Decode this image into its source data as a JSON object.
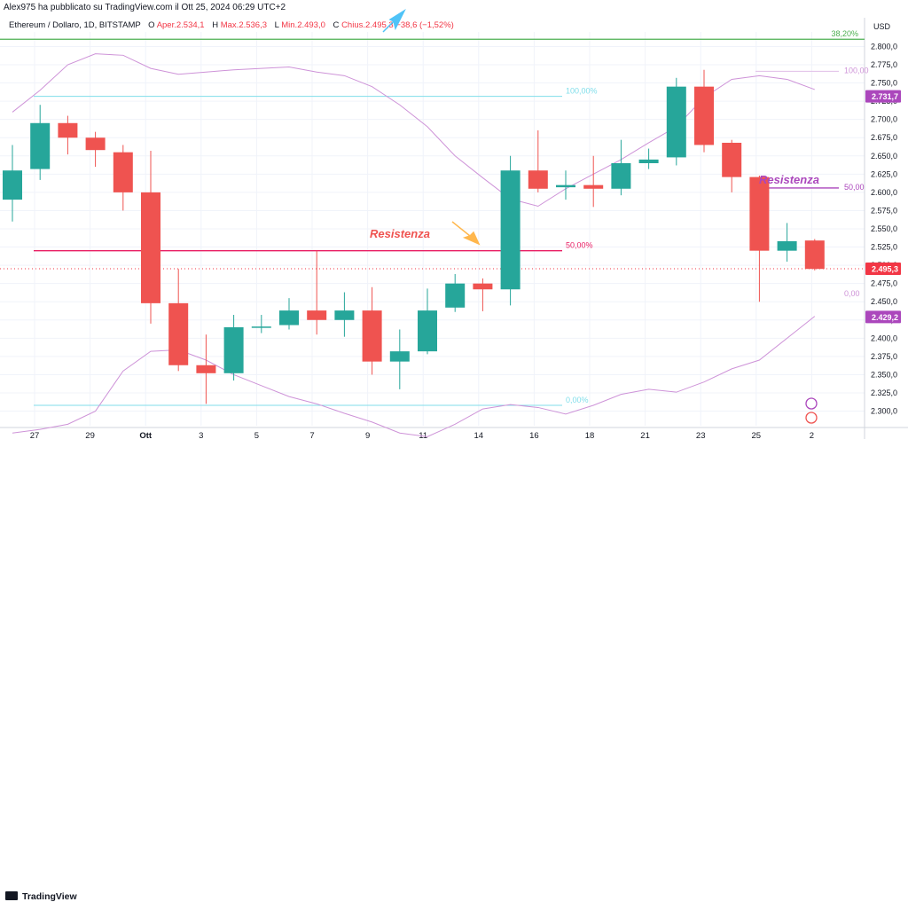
{
  "attribution": "Alex975 ha pubblicato su TradingView.com il Ott 25, 2024 06:29 UTC+2",
  "legend": {
    "symbol": "Ethereum / Dollaro, 1D, BITSTAMP",
    "o_label": "O",
    "o_value": "Aper.2.534,1",
    "h_label": "H",
    "h_value": "Max.2.536,3",
    "l_label": "L",
    "l_value": "Min.2.493,0",
    "c_label": "C",
    "c_value": "Chius.2.495,3",
    "change": "−38,6 (−1,52%)"
  },
  "footer": {
    "brand": "TradingView"
  },
  "colors": {
    "up": "#26a69a",
    "down": "#ef5350",
    "bb": "#ce93d8",
    "fib": "#80deea",
    "resist": "#e91e63",
    "fib382": "#4caf50",
    "annotation": "#ab47bc"
  },
  "chart_data": {
    "type": "candlestick",
    "currency": "USD",
    "x_ticks": [
      "27",
      "29",
      "Ott",
      "3",
      "5",
      "7",
      "9",
      "11",
      "14",
      "16",
      "18",
      "21",
      "23",
      "25",
      "2"
    ],
    "y_ticks": [
      "2.800,0",
      "2.775,0",
      "2.750,0",
      "2.725,0",
      "2.700,0",
      "2.675,0",
      "2.650,0",
      "2.625,0",
      "2.600,0",
      "2.575,0",
      "2.550,0",
      "2.525,0",
      "2.500,0",
      "2.475,0",
      "2.450,0",
      "2.425,0",
      "2.400,0",
      "2.375,0",
      "2.350,0",
      "2.325,0",
      "2.300,0"
    ],
    "ylim": [
      2280,
      2820
    ],
    "candles": [
      {
        "o": 2590,
        "h": 2665,
        "l": 2560,
        "c": 2630
      },
      {
        "o": 2632,
        "h": 2720,
        "l": 2617,
        "c": 2695
      },
      {
        "o": 2695,
        "h": 2705,
        "l": 2652,
        "c": 2675
      },
      {
        "o": 2675,
        "h": 2683,
        "l": 2635,
        "c": 2658
      },
      {
        "o": 2655,
        "h": 2665,
        "l": 2575,
        "c": 2600
      },
      {
        "o": 2600,
        "h": 2657,
        "l": 2420,
        "c": 2448
      },
      {
        "o": 2448,
        "h": 2495,
        "l": 2355,
        "c": 2363
      },
      {
        "o": 2363,
        "h": 2405,
        "l": 2310,
        "c": 2352
      },
      {
        "o": 2352,
        "h": 2432,
        "l": 2342,
        "c": 2415
      },
      {
        "o": 2415,
        "h": 2432,
        "l": 2407,
        "c": 2416
      },
      {
        "o": 2418,
        "h": 2455,
        "l": 2412,
        "c": 2438
      },
      {
        "o": 2438,
        "h": 2520,
        "l": 2405,
        "c": 2425
      },
      {
        "o": 2425,
        "h": 2463,
        "l": 2402,
        "c": 2438
      },
      {
        "o": 2438,
        "h": 2470,
        "l": 2350,
        "c": 2368
      },
      {
        "o": 2368,
        "h": 2412,
        "l": 2330,
        "c": 2382
      },
      {
        "o": 2382,
        "h": 2468,
        "l": 2378,
        "c": 2438
      },
      {
        "o": 2442,
        "h": 2488,
        "l": 2436,
        "c": 2475
      },
      {
        "o": 2475,
        "h": 2482,
        "l": 2437,
        "c": 2467
      },
      {
        "o": 2467,
        "h": 2650,
        "l": 2445,
        "c": 2630
      },
      {
        "o": 2630,
        "h": 2685,
        "l": 2600,
        "c": 2605
      },
      {
        "o": 2607,
        "h": 2630,
        "l": 2590,
        "c": 2610
      },
      {
        "o": 2610,
        "h": 2650,
        "l": 2580,
        "c": 2605
      },
      {
        "o": 2605,
        "h": 2672,
        "l": 2596,
        "c": 2640
      },
      {
        "o": 2640,
        "h": 2660,
        "l": 2632,
        "c": 2645
      },
      {
        "o": 2648,
        "h": 2757,
        "l": 2637,
        "c": 2745
      },
      {
        "o": 2745,
        "h": 2768,
        "l": 2655,
        "c": 2665
      },
      {
        "o": 2668,
        "h": 2672,
        "l": 2600,
        "c": 2621
      },
      {
        "o": 2621,
        "h": 2623,
        "l": 2450,
        "c": 2520
      },
      {
        "o": 2520,
        "h": 2558,
        "l": 2505,
        "c": 2533
      },
      {
        "o": 2534,
        "h": 2536,
        "l": 2493,
        "c": 2495
      }
    ],
    "bb_upper": [
      2710,
      2740,
      2775,
      2790,
      2788,
      2770,
      2762,
      2765,
      2768,
      2770,
      2772,
      2765,
      2760,
      2745,
      2720,
      2690,
      2650,
      2620,
      2591,
      2581,
      2605,
      2625,
      2645,
      2668,
      2690,
      2730,
      2755,
      2760,
      2755,
      2741
    ],
    "bb_lower": [
      2270,
      2275,
      2282,
      2300,
      2355,
      2382,
      2384,
      2370,
      2350,
      2335,
      2320,
      2310,
      2297,
      2285,
      2270,
      2265,
      2282,
      2303,
      2309,
      2305,
      2296,
      2308,
      2323,
      2330,
      2326,
      2340,
      2358,
      2370,
      2400,
      2430
    ],
    "fib_levels": [
      {
        "label": "100,00%",
        "value": 2731.7
      },
      {
        "label": "50,00%",
        "value": 2520
      },
      {
        "label": "0,00%",
        "value": 2308
      }
    ],
    "fib_right": [
      {
        "label": "100,00",
        "value": 2766
      },
      {
        "label": "50,00",
        "value": 2606
      },
      {
        "label": "0,00",
        "value": 2460
      }
    ],
    "fib_382": {
      "label": "38,20%",
      "value": 2810
    },
    "resistance_labels": [
      "Resistenza",
      "Resistenza"
    ],
    "price_badges": [
      {
        "label": "2.731,7",
        "value": 2731.7,
        "color": "#ab47bc"
      },
      {
        "label": "2.495,3",
        "value": 2495.3,
        "color": "#f23645"
      },
      {
        "label": "2.429,2",
        "value": 2429.2,
        "color": "#ab47bc"
      }
    ]
  }
}
